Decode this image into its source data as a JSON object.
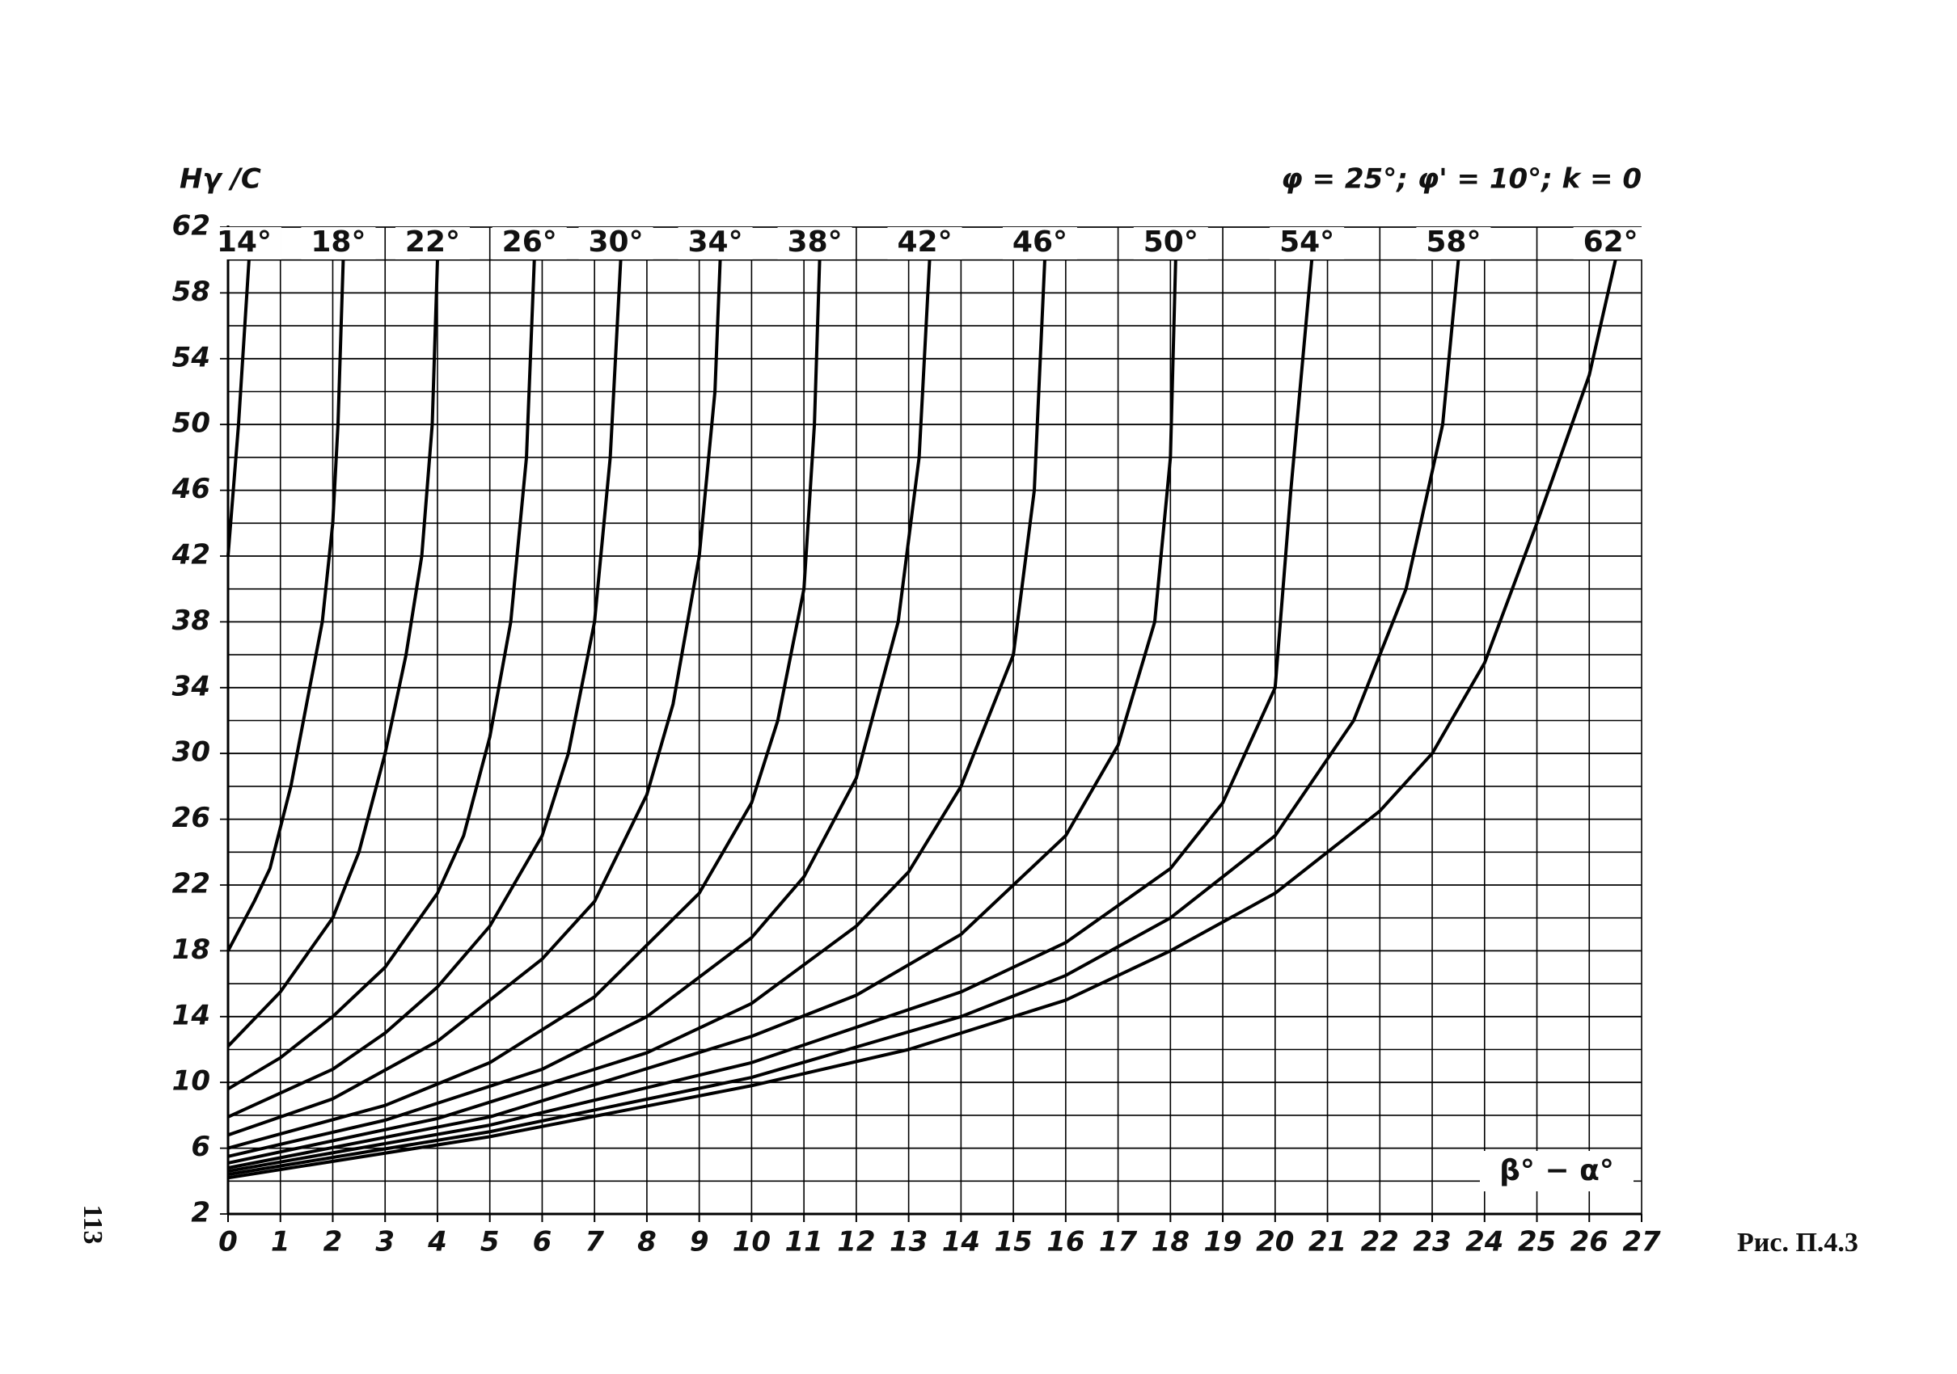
{
  "chart_data": {
    "type": "line",
    "y_label": "Hγ /C",
    "subtitle": "φ = 25°; φ' = 10°; k = 0",
    "x_label": "β° − α°",
    "caption": "Рис. П.4.3",
    "page_number": "113",
    "xlim": [
      0,
      27
    ],
    "ylim": [
      2,
      62
    ],
    "xticks": [
      0,
      1,
      2,
      3,
      4,
      5,
      6,
      7,
      8,
      9,
      10,
      11,
      12,
      13,
      14,
      15,
      16,
      17,
      18,
      19,
      20,
      21,
      22,
      23,
      24,
      25,
      26,
      27
    ],
    "yticks": [
      2,
      6,
      10,
      14,
      18,
      22,
      26,
      30,
      34,
      38,
      42,
      46,
      50,
      54,
      58,
      62
    ],
    "yminorticks": [
      4,
      8,
      12,
      16,
      20,
      24,
      28,
      32,
      36,
      40,
      44,
      48,
      52,
      56,
      60
    ],
    "grid": true,
    "series": [
      {
        "name": "14°",
        "color": "#000000",
        "x": [
          0,
          0.2,
          0.4
        ],
        "values": [
          42,
          50,
          60
        ]
      },
      {
        "name": "18°",
        "color": "#000000",
        "x": [
          0,
          0.5,
          0.8,
          1.2,
          1.5,
          1.8,
          2.0,
          2.1,
          2.2
        ],
        "values": [
          18,
          21,
          23,
          28,
          33,
          38,
          44,
          50,
          60
        ]
      },
      {
        "name": "22°",
        "color": "#000000",
        "x": [
          0,
          1,
          2,
          2.5,
          3,
          3.4,
          3.7,
          3.9,
          4.0
        ],
        "values": [
          12.2,
          15.5,
          20,
          24,
          30,
          36,
          42,
          50,
          60
        ]
      },
      {
        "name": "26°",
        "color": "#000000",
        "x": [
          0,
          1,
          2,
          3,
          4,
          4.5,
          5,
          5.4,
          5.7,
          5.85
        ],
        "values": [
          9.6,
          11.5,
          14,
          17,
          21.5,
          25,
          31,
          38,
          48,
          60
        ]
      },
      {
        "name": "30°",
        "color": "#000000",
        "x": [
          0,
          2,
          3,
          4,
          5,
          6,
          6.5,
          7,
          7.3,
          7.5
        ],
        "values": [
          7.9,
          10.8,
          13,
          15.8,
          19.5,
          25,
          30,
          38,
          48,
          60
        ]
      },
      {
        "name": "34°",
        "color": "#000000",
        "x": [
          0,
          2,
          4,
          6,
          7,
          8,
          8.5,
          9,
          9.3,
          9.4
        ],
        "values": [
          6.8,
          9,
          12.5,
          17.5,
          21,
          27.5,
          33,
          42,
          52,
          60
        ]
      },
      {
        "name": "38°",
        "color": "#000000",
        "x": [
          0,
          3,
          5,
          7,
          9,
          10,
          10.5,
          11,
          11.2,
          11.3
        ],
        "values": [
          6.0,
          8.6,
          11.2,
          15.2,
          21.5,
          27,
          32,
          40,
          50,
          60
        ]
      },
      {
        "name": "42°",
        "color": "#000000",
        "x": [
          0,
          3,
          6,
          8,
          10,
          11,
          12,
          12.8,
          13.2,
          13.4
        ],
        "values": [
          5.5,
          7.7,
          10.8,
          14,
          18.8,
          22.5,
          28.5,
          38,
          48,
          60
        ]
      },
      {
        "name": "46°",
        "color": "#000000",
        "x": [
          0,
          4,
          8,
          10,
          12,
          13,
          14,
          15,
          15.4,
          15.6
        ],
        "values": [
          5.1,
          7.8,
          11.8,
          14.8,
          19.5,
          22.8,
          28,
          36,
          46,
          60
        ]
      },
      {
        "name": "50°",
        "color": "#000000",
        "x": [
          0,
          5,
          10,
          12,
          14,
          16,
          17,
          17.7,
          18,
          18.1
        ],
        "values": [
          4.8,
          7.9,
          12.8,
          15.3,
          19,
          25,
          30.5,
          38,
          48,
          60
        ]
      },
      {
        "name": "54°",
        "color": "#000000",
        "x": [
          0,
          5,
          10,
          14,
          16,
          18,
          19,
          20,
          20.3,
          20.7
        ],
        "values": [
          4.6,
          7.4,
          11.2,
          15.5,
          18.5,
          23,
          27,
          34,
          46,
          60
        ]
      },
      {
        "name": "58°",
        "color": "#000000",
        "x": [
          0,
          5,
          10,
          14,
          16,
          18,
          20,
          21.5,
          22.5,
          23.2,
          23.5
        ],
        "values": [
          4.4,
          7,
          10.3,
          14,
          16.5,
          20,
          25,
          32,
          40,
          50,
          60
        ]
      },
      {
        "name": "62°",
        "color": "#000000",
        "x": [
          0,
          5,
          10,
          13,
          16,
          18,
          20,
          22,
          23,
          24,
          25,
          26,
          26.5
        ],
        "values": [
          4.2,
          6.7,
          9.8,
          12,
          15,
          18,
          21.5,
          26.5,
          30,
          35.5,
          44,
          53,
          60
        ]
      }
    ]
  }
}
